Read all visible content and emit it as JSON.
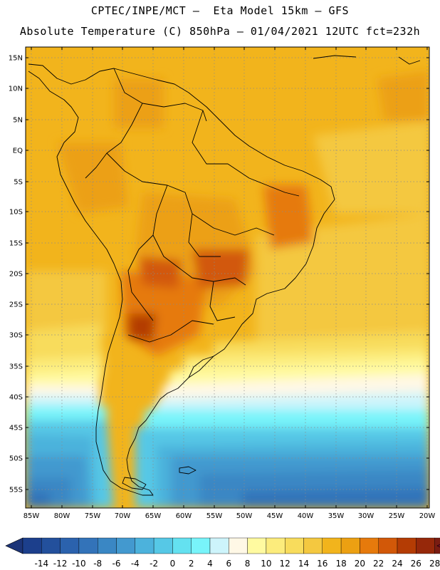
{
  "header": {
    "line1": "CPTEC/INPE/MCT –  Eta Model 15km – GFS",
    "line2": "Absolute Temperature (C) 850hPa – 01/04/2021 12UTC fct=232h"
  },
  "map_axes": {
    "lat_labels": [
      "15N",
      "10N",
      "5N",
      "EQ",
      "5S",
      "10S",
      "15S",
      "20S",
      "25S",
      "30S",
      "35S",
      "40S",
      "45S",
      "50S",
      "55S"
    ],
    "lon_labels": [
      "85W",
      "80W",
      "75W",
      "70W",
      "65W",
      "60W",
      "55W",
      "50W",
      "45W",
      "40W",
      "35W",
      "30W",
      "25W",
      "20W"
    ]
  },
  "colorbar": {
    "labels": [
      "-14",
      "-12",
      "-10",
      "-8",
      "-6",
      "-4",
      "-2",
      "0",
      "2",
      "4",
      "6",
      "8",
      "10",
      "12",
      "14",
      "16",
      "18",
      "20",
      "22",
      "24",
      "26",
      "28"
    ],
    "colors": [
      "#1c3f8c",
      "#23509c",
      "#2b62ad",
      "#3373b9",
      "#3a87c4",
      "#4399cf",
      "#4cb2dc",
      "#56c8e6",
      "#64e1f0",
      "#78f4fa",
      "#cdf4fb",
      "#fff8e6",
      "#fffaa0",
      "#fcec7c",
      "#f8dc5c",
      "#f4c840",
      "#f2b41c",
      "#eca012",
      "#e67a0c",
      "#d25808",
      "#b43c04",
      "#96280a",
      "#7a1c12"
    ],
    "low_arrow_color": "#1c3478",
    "high_arrow_color": "#780a28"
  }
}
